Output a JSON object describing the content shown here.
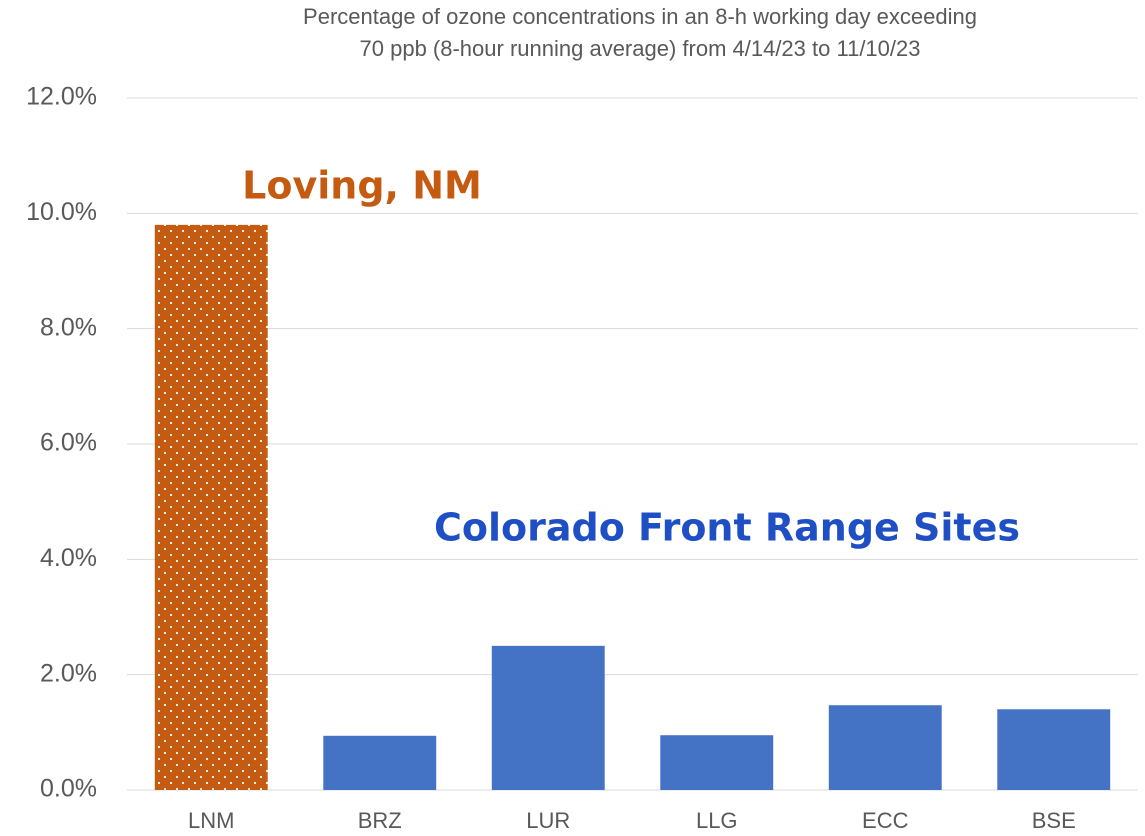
{
  "chart_data": {
    "type": "bar",
    "title": [
      "Percentage of ozone concentrations in an 8-h working day exceeding",
      "70 ppb (8-hour running average) from 4/14/23 to 11/10/23"
    ],
    "categories": [
      "LNM",
      "BRZ",
      "LUR",
      "LLG",
      "ECC",
      "BSE"
    ],
    "values": [
      9.8,
      0.94,
      2.5,
      0.95,
      1.47,
      1.4
    ],
    "colors": [
      "#c55a11",
      "#4472c4",
      "#4472c4",
      "#4472c4",
      "#4472c4",
      "#4472c4"
    ],
    "pattern": [
      "dots",
      null,
      null,
      null,
      null,
      null
    ],
    "ylim": [
      0,
      12
    ],
    "yticks": [
      {
        "value": 0,
        "label": "0.0%"
      },
      {
        "value": 2,
        "label": "2.0%"
      },
      {
        "value": 4,
        "label": "4.0%"
      },
      {
        "value": 6,
        "label": "6.0%"
      },
      {
        "value": 8,
        "label": "8.0%"
      },
      {
        "value": 10,
        "label": "10.0%"
      },
      {
        "value": 12,
        "label": "12.0%"
      }
    ],
    "grid": true,
    "annotations": [
      {
        "text": "Loving, NM",
        "color": "#c55a11"
      },
      {
        "text": "Colorado Front Range Sites",
        "color": "#1f4fc4"
      }
    ]
  }
}
